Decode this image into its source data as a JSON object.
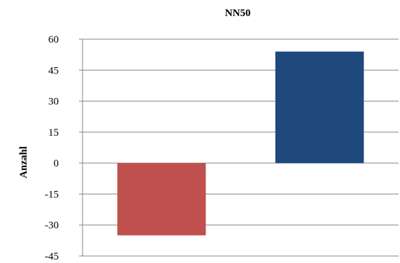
{
  "chart_data": {
    "type": "bar",
    "title": "NN50",
    "xlabel": "",
    "ylabel": "Anzahl",
    "ylim": [
      -45,
      60
    ],
    "yticks": [
      60,
      45,
      30,
      15,
      0,
      -15,
      -30,
      -45
    ],
    "grid": true,
    "legend": "none",
    "categories": [
      "",
      ""
    ],
    "series": [
      {
        "values": [
          -35,
          54
        ],
        "colors": [
          "#c0504d",
          "#1f497d"
        ]
      }
    ]
  }
}
